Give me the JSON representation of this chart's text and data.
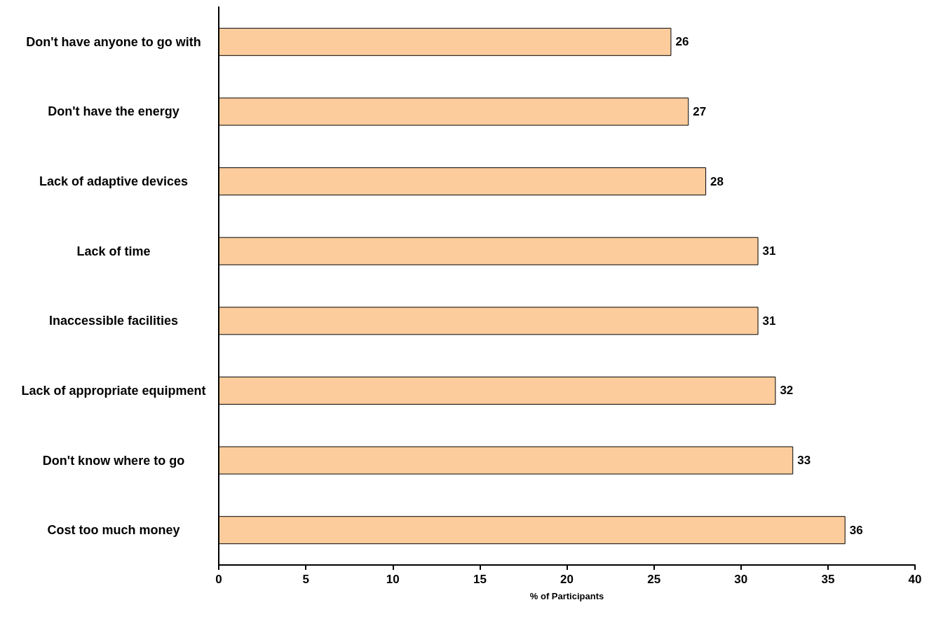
{
  "chart_data": {
    "type": "bar",
    "orientation": "horizontal",
    "xlabel": "% of Participants",
    "categories": [
      "Don't have anyone to go with",
      "Don't have the energy",
      "Lack of adaptive devices",
      "Lack of time",
      "Inaccessible facilities",
      "Lack of appropriate equipment",
      "Don't know where to go",
      "Cost too much money"
    ],
    "values": [
      26,
      27,
      28,
      31,
      31,
      32,
      33,
      36
    ],
    "color": "#fccc9c",
    "xlim": [
      0,
      40
    ],
    "xticks": [
      0,
      5,
      10,
      15,
      20,
      25,
      30,
      35,
      40
    ],
    "grid": false,
    "data_labels": true
  }
}
